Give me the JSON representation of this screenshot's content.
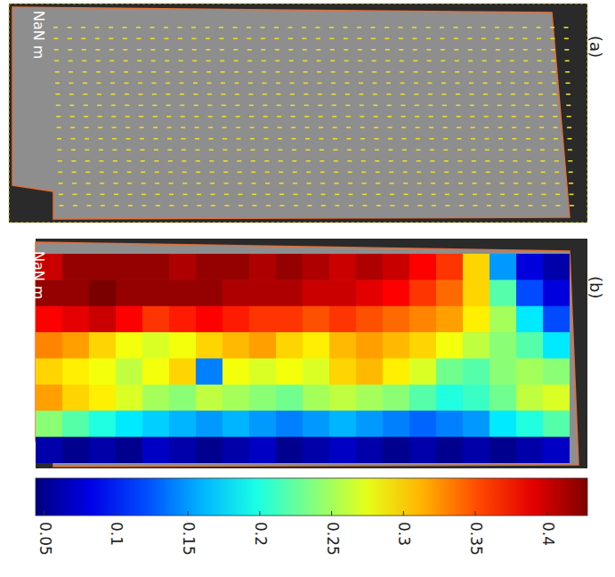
{
  "chart_data": {
    "type": "heatmap",
    "panels": [
      "(a)",
      "(b)"
    ],
    "scale_label": "NaN m",
    "tick_labels": false,
    "cells": [
      [
        0.4,
        0.42,
        0.42,
        0.42,
        0.42,
        0.41,
        0.42,
        0.42,
        0.41,
        0.42,
        0.41,
        0.4,
        0.41,
        0.4,
        0.38,
        0.36,
        0.3,
        0.15,
        0.08,
        0.06
      ],
      [
        0.42,
        0.42,
        0.43,
        0.42,
        0.42,
        0.42,
        0.42,
        0.41,
        0.41,
        0.41,
        0.4,
        0.4,
        0.39,
        0.38,
        0.36,
        0.34,
        0.3,
        0.22,
        0.12,
        0.08
      ],
      [
        0.38,
        0.39,
        0.4,
        0.38,
        0.36,
        0.37,
        0.38,
        0.37,
        0.36,
        0.36,
        0.35,
        0.36,
        0.35,
        0.34,
        0.33,
        0.32,
        0.29,
        0.25,
        0.18,
        0.12
      ],
      [
        0.33,
        0.32,
        0.3,
        0.28,
        0.27,
        0.28,
        0.3,
        0.31,
        0.32,
        0.3,
        0.29,
        0.31,
        0.32,
        0.31,
        0.3,
        0.28,
        0.26,
        0.24,
        0.22,
        0.18
      ],
      [
        0.3,
        0.29,
        0.28,
        0.26,
        0.28,
        0.3,
        0.14,
        0.28,
        0.27,
        0.28,
        0.27,
        0.3,
        0.31,
        0.29,
        0.27,
        0.23,
        0.22,
        0.24,
        0.25,
        0.24
      ],
      [
        0.32,
        0.3,
        0.29,
        0.27,
        0.25,
        0.24,
        0.26,
        0.25,
        0.24,
        0.23,
        0.25,
        0.26,
        0.25,
        0.24,
        0.22,
        0.2,
        0.21,
        0.23,
        0.26,
        0.27
      ],
      [
        0.24,
        0.22,
        0.2,
        0.18,
        0.17,
        0.16,
        0.15,
        0.16,
        0.15,
        0.14,
        0.15,
        0.16,
        0.15,
        0.14,
        0.13,
        0.14,
        0.15,
        0.18,
        0.2,
        0.22
      ],
      [
        0.06,
        0.05,
        0.06,
        0.05,
        0.07,
        0.06,
        0.05,
        0.06,
        0.07,
        0.05,
        0.06,
        0.07,
        0.06,
        0.05,
        0.06,
        0.05,
        0.06,
        0.05,
        0.06,
        0.07
      ]
    ],
    "color_range": [
      0.044,
      0.428
    ],
    "color_ticks": [
      0.05,
      0.1,
      0.15,
      0.2,
      0.25,
      0.3,
      0.35,
      0.4
    ]
  }
}
